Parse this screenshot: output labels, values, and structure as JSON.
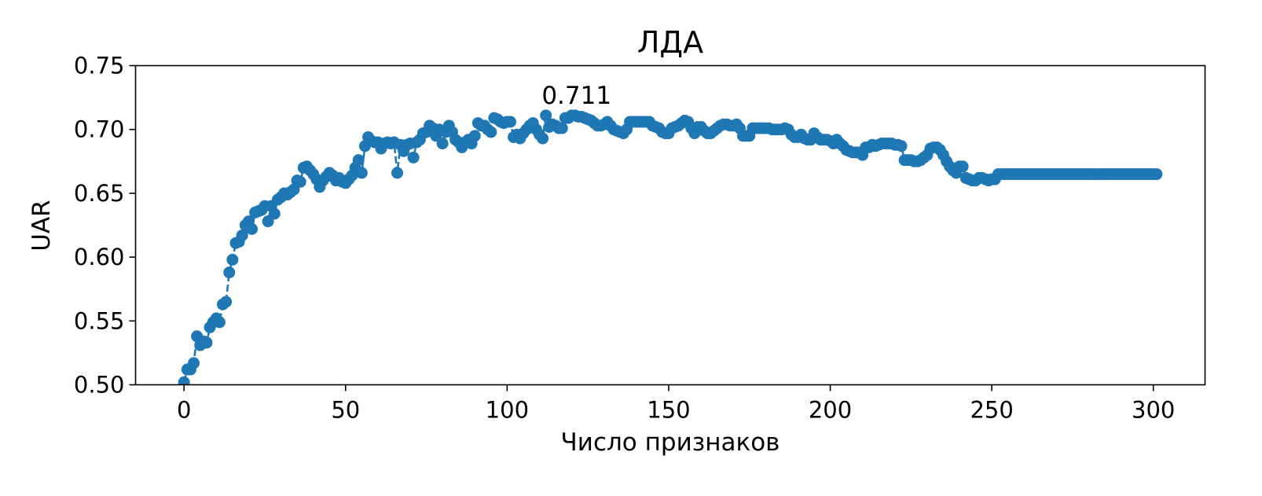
{
  "chart_data": {
    "type": "line",
    "title": "ЛДА",
    "xlabel": "Число признаков",
    "ylabel": "UAR",
    "xlim": [
      -15,
      316
    ],
    "ylim": [
      0.5,
      0.75
    ],
    "x_ticks": [
      0,
      50,
      100,
      150,
      200,
      250,
      300
    ],
    "x_tick_labels": [
      "0",
      "50",
      "100",
      "150",
      "200",
      "250",
      "300"
    ],
    "y_ticks": [
      0.5,
      0.55,
      0.6,
      0.65,
      0.7,
      0.75
    ],
    "y_tick_labels": [
      "0.50",
      "0.55",
      "0.60",
      "0.65",
      "0.70",
      "0.75"
    ],
    "grid": false,
    "line_style": "dashed",
    "marker": "circle",
    "color": "#1f77b4",
    "x_start": 0,
    "x_step": 1,
    "values": [
      0.502,
      0.512,
      0.512,
      0.517,
      0.538,
      0.531,
      0.534,
      0.533,
      0.545,
      0.549,
      0.552,
      0.549,
      0.563,
      0.565,
      0.588,
      0.598,
      0.611,
      0.612,
      0.617,
      0.625,
      0.628,
      0.622,
      0.635,
      0.636,
      0.637,
      0.64,
      0.628,
      0.64,
      0.634,
      0.645,
      0.647,
      0.65,
      0.649,
      0.651,
      0.653,
      0.66,
      0.659,
      0.67,
      0.671,
      0.668,
      0.665,
      0.661,
      0.655,
      0.66,
      0.663,
      0.666,
      0.664,
      0.66,
      0.662,
      0.659,
      0.658,
      0.661,
      0.664,
      0.67,
      0.676,
      0.666,
      0.687,
      0.694,
      0.691,
      0.69,
      0.69,
      0.685,
      0.689,
      0.69,
      0.689,
      0.69,
      0.666,
      0.688,
      0.683,
      0.688,
      0.689,
      0.678,
      0.69,
      0.692,
      0.697,
      0.698,
      0.703,
      0.701,
      0.695,
      0.7,
      0.689,
      0.698,
      0.703,
      0.698,
      0.692,
      0.69,
      0.686,
      0.69,
      0.692,
      0.689,
      0.695,
      0.705,
      0.703,
      0.703,
      0.7,
      0.698,
      0.709,
      0.708,
      0.706,
      0.705,
      0.706,
      0.706,
      0.694,
      0.696,
      0.693,
      0.697,
      0.7,
      0.703,
      0.705,
      0.7,
      0.696,
      0.693,
      0.711,
      0.702,
      0.704,
      0.703,
      0.701,
      0.701,
      0.709,
      0.709,
      0.711,
      0.711,
      0.71,
      0.71,
      0.709,
      0.708,
      0.707,
      0.705,
      0.703,
      0.703,
      0.704,
      0.706,
      0.703,
      0.7,
      0.699,
      0.698,
      0.697,
      0.7,
      0.706,
      0.706,
      0.706,
      0.706,
      0.706,
      0.706,
      0.706,
      0.703,
      0.702,
      0.701,
      0.698,
      0.697,
      0.697,
      0.701,
      0.702,
      0.703,
      0.705,
      0.707,
      0.706,
      0.701,
      0.697,
      0.702,
      0.702,
      0.699,
      0.697,
      0.697,
      0.699,
      0.701,
      0.703,
      0.704,
      0.704,
      0.703,
      0.703,
      0.704,
      0.701,
      0.695,
      0.695,
      0.695,
      0.701,
      0.701,
      0.701,
      0.701,
      0.701,
      0.701,
      0.7,
      0.7,
      0.7,
      0.7,
      0.701,
      0.7,
      0.696,
      0.694,
      0.694,
      0.696,
      0.693,
      0.692,
      0.692,
      0.697,
      0.694,
      0.692,
      0.692,
      0.692,
      0.691,
      0.689,
      0.692,
      0.689,
      0.687,
      0.684,
      0.683,
      0.682,
      0.682,
      0.682,
      0.68,
      0.686,
      0.686,
      0.688,
      0.687,
      0.688,
      0.689,
      0.689,
      0.689,
      0.689,
      0.688,
      0.688,
      0.687,
      0.676,
      0.676,
      0.676,
      0.675,
      0.675,
      0.676,
      0.678,
      0.68,
      0.685,
      0.686,
      0.686,
      0.684,
      0.68,
      0.675,
      0.671,
      0.668,
      0.666,
      0.671,
      0.671,
      0.662,
      0.661,
      0.66,
      0.66,
      0.662,
      0.662,
      0.661,
      0.66,
      0.661,
      0.661,
      0.665,
      0.665,
      0.665,
      0.665,
      0.665,
      0.665,
      0.665,
      0.665,
      0.665,
      0.665,
      0.665,
      0.665,
      0.665,
      0.665,
      0.665,
      0.665,
      0.665,
      0.665,
      0.665,
      0.665,
      0.665,
      0.665,
      0.665,
      0.665,
      0.665,
      0.665,
      0.665,
      0.665,
      0.665,
      0.665,
      0.665,
      0.665,
      0.665,
      0.665,
      0.665,
      0.665,
      0.665,
      0.665,
      0.665,
      0.665,
      0.665,
      0.665,
      0.665,
      0.665,
      0.665,
      0.665,
      0.665,
      0.665,
      0.665,
      0.665
    ],
    "annotation": {
      "text": "0.711",
      "x": 121,
      "y": 0.711
    }
  }
}
